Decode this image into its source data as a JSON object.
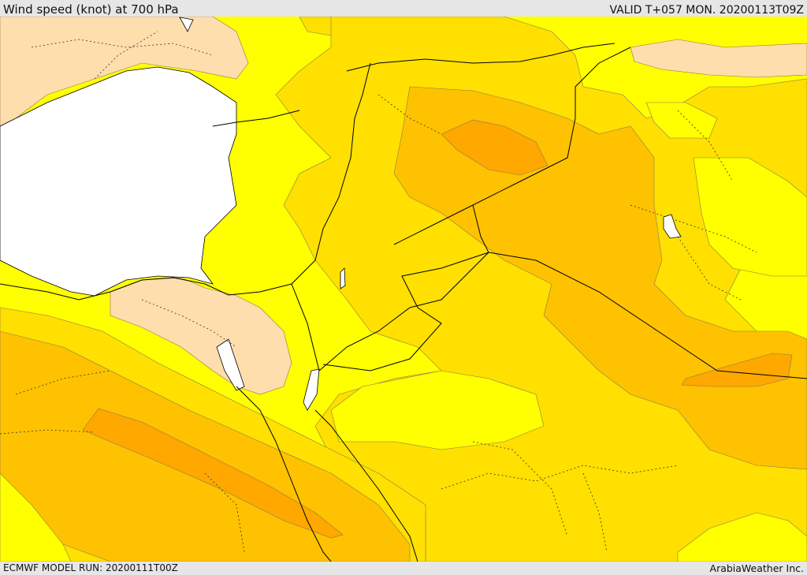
{
  "header": {
    "title": "Wind speed (knot) at 700 hPa",
    "valid": "VALID T+057 MON. 20200113T09Z"
  },
  "footer": {
    "model_run": "ECMWF MODEL RUN: 20200111T00Z",
    "credit": "ArabiaWeather Inc."
  },
  "colors": {
    "speed_band_1": "#ffdead",
    "speed_band_2": "#ffff00",
    "speed_band_3": "#ffe000",
    "speed_band_4": "#ffc200",
    "speed_band_5": "#ffa800",
    "speed_band_6": "#ff9800",
    "sea_mask": "#ffffff"
  }
}
